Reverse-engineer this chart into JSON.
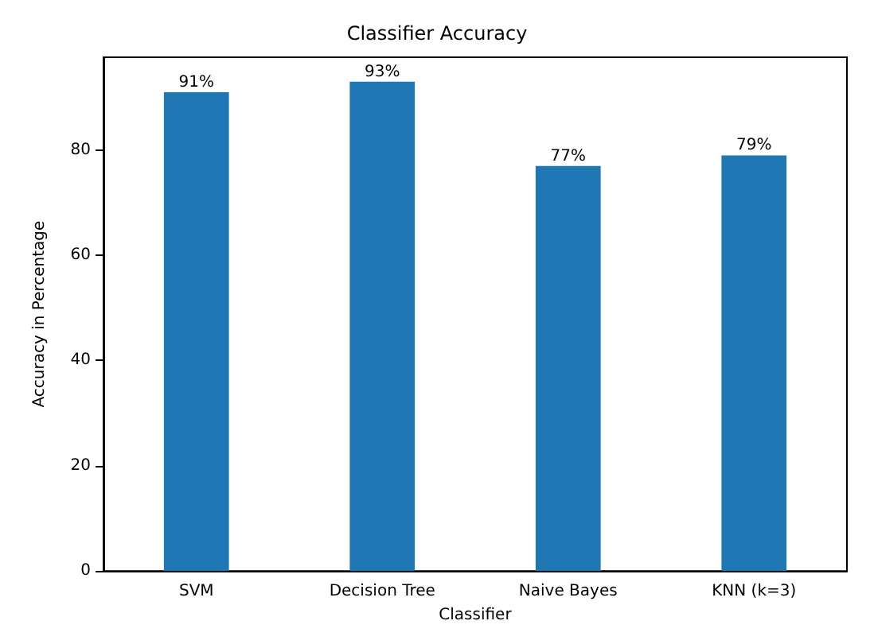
{
  "chart_data": {
    "type": "bar",
    "title": "Classifier Accuracy",
    "xlabel": "Classifier",
    "ylabel": "Accuracy in Percentage",
    "categories": [
      "SVM",
      "Decision Tree",
      "Naive Bayes",
      "KNN (k=3)"
    ],
    "values": [
      91,
      93,
      77,
      79
    ],
    "value_labels": [
      "91%",
      "93%",
      "77%",
      "79%"
    ],
    "color": "#1f77b4",
    "ylim": [
      0,
      97.65
    ],
    "yticks": [
      0,
      20,
      40,
      60,
      80
    ],
    "grid": false
  }
}
